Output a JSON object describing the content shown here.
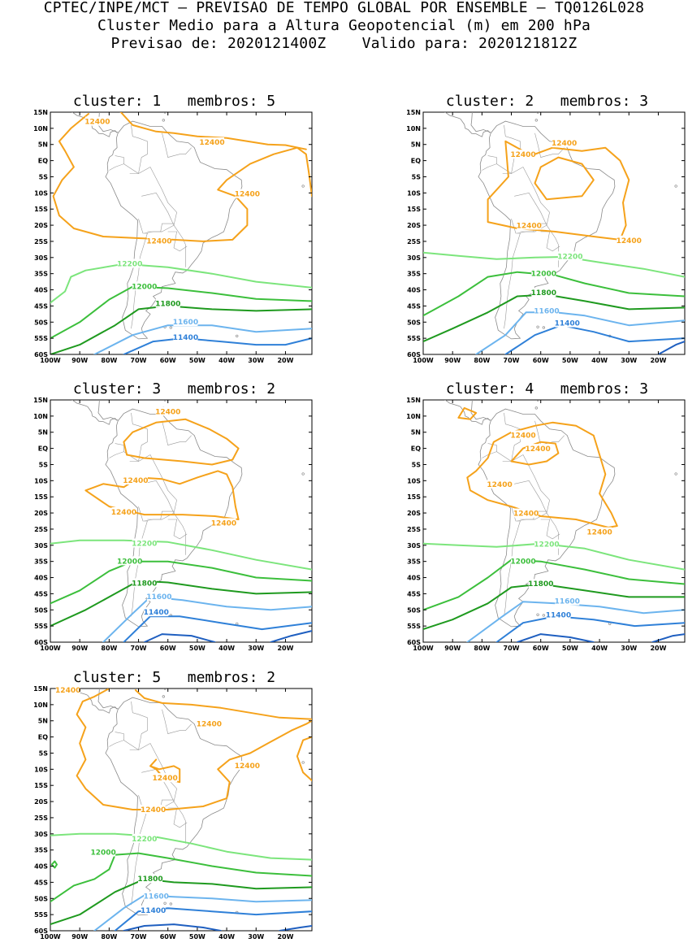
{
  "header": {
    "line1": "CPTEC/INPE/MCT — PREVISAO DE TEMPO GLOBAL POR ENSEMBLE — TQ0126L028",
    "line2": "Cluster Medio para a Altura Geopotencial (m) em 200 hPa",
    "line3": "Previsao de: 2020121400Z    Valido para: 2020121812Z"
  },
  "axes": {
    "lat_ticks": [
      "15N",
      "10N",
      "5N",
      "EQ",
      "5S",
      "10S",
      "15S",
      "20S",
      "25S",
      "30S",
      "35S",
      "40S",
      "45S",
      "50S",
      "55S",
      "60S"
    ],
    "lon_ticks": [
      "100W",
      "90W",
      "80W",
      "70W",
      "60W",
      "50W",
      "40W",
      "30W",
      "20W"
    ]
  },
  "contour_colors": {
    "12400": "#f5a21b",
    "12200": "#7ce57c",
    "12000": "#3cbf3c",
    "11800": "#1f9a1f",
    "11600": "#6cb4ee",
    "11400": "#2f80d8",
    "11200": "#1f5fc0"
  },
  "panels": [
    {
      "title": "cluster: 1   membros: 5",
      "labels": [
        {
          "text": "12400",
          "lon": -84,
          "lat": 12.2,
          "level": "12400"
        },
        {
          "text": "12400",
          "lon": -45,
          "lat": 5.8,
          "level": "12400"
        },
        {
          "text": "12400",
          "lon": -33,
          "lat": -10.2,
          "level": "12400"
        },
        {
          "text": "12400",
          "lon": -63,
          "lat": -24.8,
          "level": "12400"
        },
        {
          "text": "12200",
          "lon": -73,
          "lat": -31.8,
          "level": "12200"
        },
        {
          "text": "12000",
          "lon": -68,
          "lat": -38.8,
          "level": "12000"
        },
        {
          "text": "11800",
          "lon": -60,
          "lat": -44.2,
          "level": "11800"
        },
        {
          "text": "11600",
          "lon": -54,
          "lat": -49.8,
          "level": "11600"
        },
        {
          "text": "11400",
          "lon": -54,
          "lat": -54.6,
          "level": "11400"
        }
      ]
    },
    {
      "title": "cluster: 2   membros: 3",
      "labels": [
        {
          "text": "12400",
          "lon": -52,
          "lat": 5.5,
          "level": "12400"
        },
        {
          "text": "12400",
          "lon": -66,
          "lat": 2,
          "level": "12400"
        },
        {
          "text": "12400",
          "lon": -64,
          "lat": -20,
          "level": "12400"
        },
        {
          "text": "12400",
          "lon": -30,
          "lat": -24.6,
          "level": "12400"
        },
        {
          "text": "12200",
          "lon": -50,
          "lat": -29.5,
          "level": "12200"
        },
        {
          "text": "12000",
          "lon": -59,
          "lat": -34.8,
          "level": "12000"
        },
        {
          "text": "11800",
          "lon": -59,
          "lat": -40.8,
          "level": "11800"
        },
        {
          "text": "11600",
          "lon": -58,
          "lat": -46.4,
          "level": "11600"
        },
        {
          "text": "11400",
          "lon": -51,
          "lat": -50.2,
          "level": "11400"
        }
      ]
    },
    {
      "title": "cluster: 3   membros: 2",
      "labels": [
        {
          "text": "12400",
          "lon": -60,
          "lat": 11.5,
          "level": "12400"
        },
        {
          "text": "12400",
          "lon": -71,
          "lat": -9.8,
          "level": "12400"
        },
        {
          "text": "12400",
          "lon": -75,
          "lat": -19.6,
          "level": "12400"
        },
        {
          "text": "12400",
          "lon": -41,
          "lat": -23,
          "level": "12400"
        },
        {
          "text": "12200",
          "lon": -68,
          "lat": -29.3,
          "level": "12200"
        },
        {
          "text": "12000",
          "lon": -73,
          "lat": -34.8,
          "level": "12000"
        },
        {
          "text": "11800",
          "lon": -68,
          "lat": -41.6,
          "level": "11800"
        },
        {
          "text": "11600",
          "lon": -63,
          "lat": -45.8,
          "level": "11600"
        },
        {
          "text": "11400",
          "lon": -64,
          "lat": -50.6,
          "level": "11400"
        }
      ]
    },
    {
      "title": "cluster: 4   membros: 3",
      "labels": [
        {
          "text": "12400",
          "lon": -66,
          "lat": 4.2,
          "level": "12400"
        },
        {
          "text": "12400",
          "lon": -61,
          "lat": 0,
          "level": "12400"
        },
        {
          "text": "12400",
          "lon": -74,
          "lat": -11,
          "level": "12400"
        },
        {
          "text": "12400",
          "lon": -65,
          "lat": -20,
          "level": "12400"
        },
        {
          "text": "12400",
          "lon": -40,
          "lat": -25.8,
          "level": "12400"
        },
        {
          "text": "12200",
          "lon": -58,
          "lat": -29.6,
          "level": "12200"
        },
        {
          "text": "12000",
          "lon": -66,
          "lat": -34.8,
          "level": "12000"
        },
        {
          "text": "11800",
          "lon": -60,
          "lat": -41.8,
          "level": "11800"
        },
        {
          "text": "11600",
          "lon": -51,
          "lat": -47.2,
          "level": "11600"
        },
        {
          "text": "11400",
          "lon": -54,
          "lat": -51.4,
          "level": "11400"
        }
      ]
    },
    {
      "title": "cluster: 5   membros: 2",
      "labels": [
        {
          "text": "12400",
          "lon": -94,
          "lat": 14.6,
          "level": "12400"
        },
        {
          "text": "12400",
          "lon": -46,
          "lat": 4.2,
          "level": "12400"
        },
        {
          "text": "12400",
          "lon": -33,
          "lat": -8.8,
          "level": "12400"
        },
        {
          "text": "12400",
          "lon": -61,
          "lat": -12.6,
          "level": "12400"
        },
        {
          "text": "12400",
          "lon": -65,
          "lat": -22.4,
          "level": "12400"
        },
        {
          "text": "12200",
          "lon": -68,
          "lat": -31.4,
          "level": "12200"
        },
        {
          "text": "12000",
          "lon": -82,
          "lat": -35.6,
          "level": "12000"
        },
        {
          "text": "11800",
          "lon": -66,
          "lat": -43.8,
          "level": "11800"
        },
        {
          "text": "11600",
          "lon": -64,
          "lat": -49.2,
          "level": "11600"
        },
        {
          "text": "11400",
          "lon": -65,
          "lat": -53.6,
          "level": "11400"
        }
      ]
    }
  ]
}
